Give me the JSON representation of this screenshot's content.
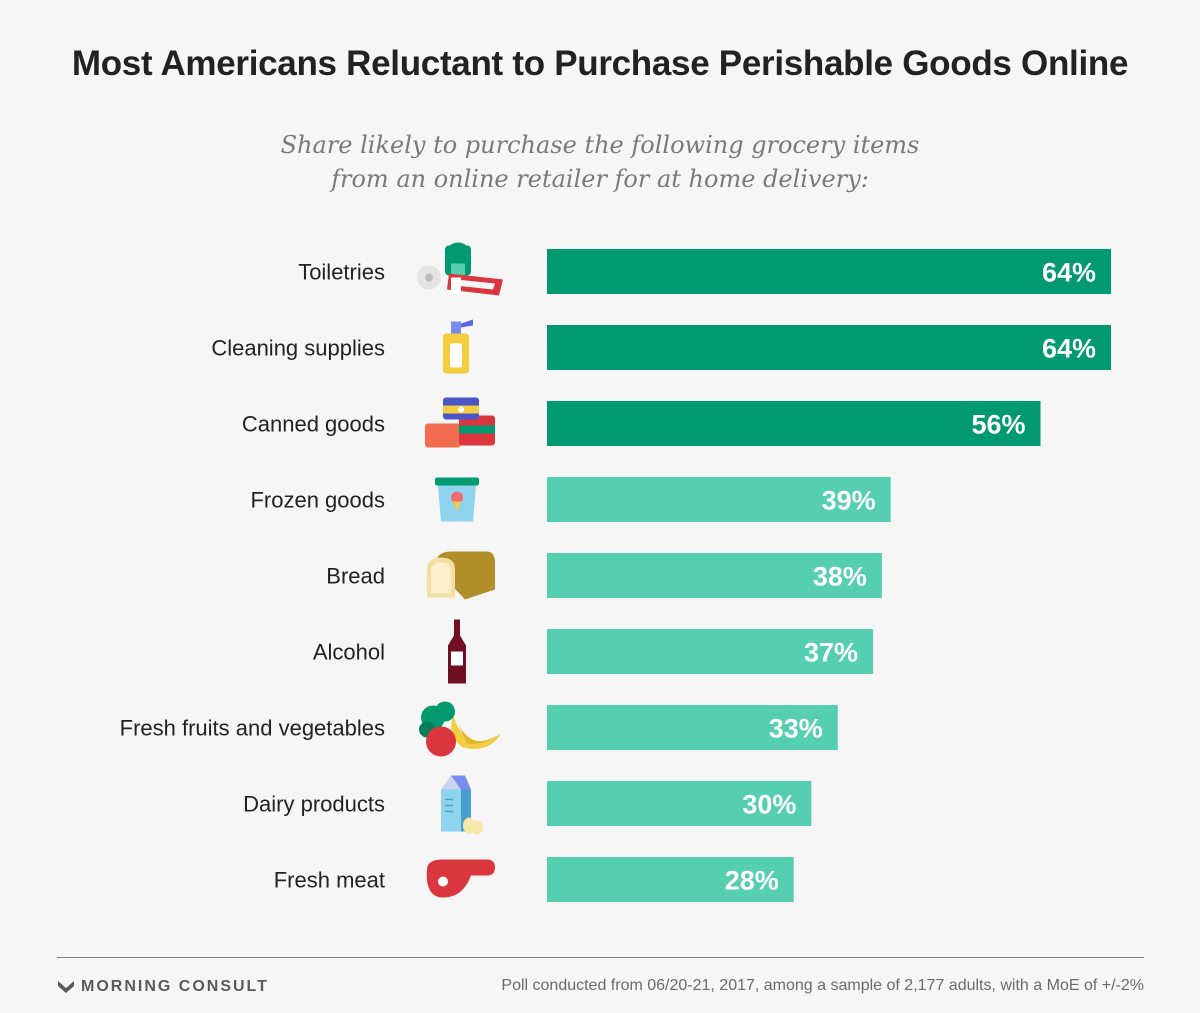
{
  "colors": {
    "dark_green": "#009970",
    "light_green": "#56cfb0",
    "background": "#f6f6f6"
  },
  "chart_data": {
    "type": "bar",
    "orientation": "horizontal",
    "title": "Most Americans Reluctant to Purchase Perishable Goods Online",
    "subtitle_lines": [
      "Share likely to purchase the following grocery items",
      "from an online retailer for at home delivery:"
    ],
    "categories": [
      "Toiletries",
      "Cleaning supplies",
      "Canned goods",
      "Frozen goods",
      "Bread",
      "Alcohol",
      "Fresh fruits and vegetables",
      "Dairy products",
      "Fresh meat"
    ],
    "values": [
      64,
      64,
      56,
      39,
      38,
      37,
      33,
      30,
      28
    ],
    "value_labels": [
      "64%",
      "64%",
      "56%",
      "39%",
      "38%",
      "37%",
      "33%",
      "30%",
      "28%"
    ],
    "icons": [
      "toiletries-icon",
      "cleaning-supplies-icon",
      "canned-goods-icon",
      "frozen-goods-icon",
      "bread-icon",
      "alcohol-icon",
      "fresh-produce-icon",
      "dairy-icon",
      "fresh-meat-icon"
    ],
    "highlight": [
      true,
      true,
      true,
      false,
      false,
      false,
      false,
      false,
      false
    ],
    "xlim": [
      0,
      64
    ],
    "grid": false
  },
  "footer": {
    "brand": "MORNING CONSULT",
    "note": "Poll conducted from 06/20-21, 2017, among a sample of 2,177 adults, with a MoE of +/-2%"
  }
}
